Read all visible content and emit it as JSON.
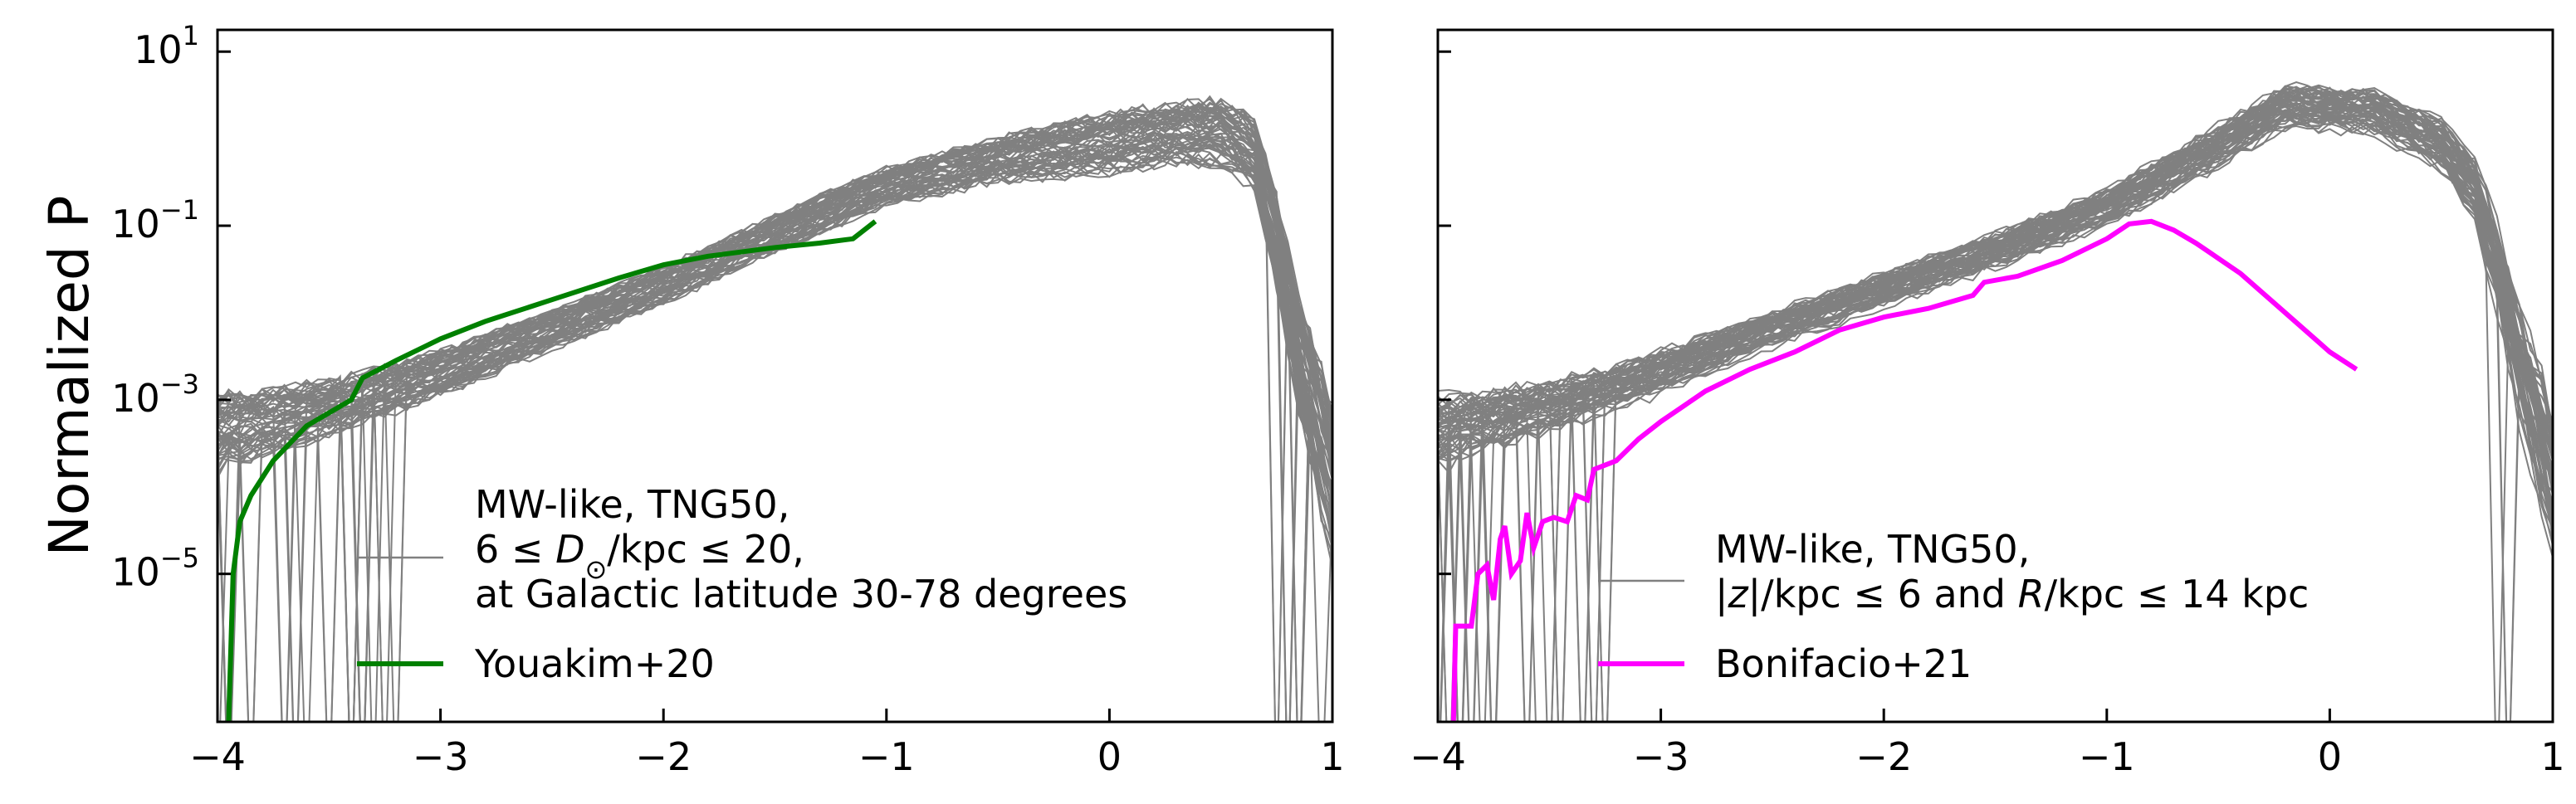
{
  "chart_data": [
    {
      "type": "line",
      "panel": "left",
      "ylabel": "Normalized P",
      "xlabel": "",
      "xlim": [
        -4,
        1
      ],
      "ylim_log10": [
        -6.7,
        1.25
      ],
      "yscale": "log",
      "xticks": [
        {
          "value": -4,
          "label": "−4"
        },
        {
          "value": -3,
          "label": "−3"
        },
        {
          "value": -2,
          "label": "−2"
        },
        {
          "value": -1,
          "label": "−1"
        },
        {
          "value": 0,
          "label": "0"
        },
        {
          "value": 1,
          "label": "1"
        }
      ],
      "yticks": [
        {
          "value": 1,
          "base": "10",
          "exp": "1"
        },
        {
          "value": -1,
          "base": "10",
          "exp": "−1"
        },
        {
          "value": -3,
          "base": "10",
          "exp": "−3"
        },
        {
          "value": -5,
          "base": "10",
          "exp": "−5"
        }
      ],
      "legend": {
        "placement": "lower-right",
        "sim_lines": [
          "MW-like, TNG50,",
          "6 ≤ D⊙/kpc  ≤ 20,",
          "at Galactic latitude 30-78 degrees"
        ],
        "obs_label": "Youakim+20"
      },
      "series": [
        {
          "name": "MW-like, TNG50, 6 ≤ D⊙/kpc ≤ 20, at Galactic latitude 30-78 degrees",
          "color": "#808080",
          "kind": "simulation-band",
          "members": 60,
          "envelope_x": [
            -4.0,
            -3.5,
            -3.0,
            -2.5,
            -2.0,
            -1.5,
            -1.0,
            -0.5,
            0.0,
            0.3,
            0.5,
            0.65,
            0.75,
            0.85,
            1.0
          ],
          "envelope_log10_mid": [
            -3.4,
            -3.1,
            -2.7,
            -2.2,
            -1.7,
            -1.1,
            -0.55,
            -0.25,
            -0.05,
            0.05,
            0.05,
            -0.2,
            -1.2,
            -2.5,
            -4.0
          ],
          "envelope_log10_halfwidth": [
            0.5,
            0.35,
            0.3,
            0.25,
            0.25,
            0.25,
            0.25,
            0.3,
            0.4,
            0.4,
            0.45,
            0.45,
            0.6,
            0.8,
            1.0
          ]
        },
        {
          "name": "Youakim+20",
          "color": "#008000",
          "kind": "observation",
          "x": [
            -3.95,
            -3.93,
            -3.9,
            -3.85,
            -3.8,
            -3.75,
            -3.6,
            -3.5,
            -3.4,
            -3.35,
            -3.2,
            -3.0,
            -2.8,
            -2.5,
            -2.2,
            -2.0,
            -1.8,
            -1.5,
            -1.3,
            -1.15,
            -1.05
          ],
          "log10y": [
            -6.7,
            -5.0,
            -4.4,
            -4.1,
            -3.9,
            -3.7,
            -3.3,
            -3.15,
            -3.0,
            -2.75,
            -2.55,
            -2.3,
            -2.1,
            -1.85,
            -1.6,
            -1.45,
            -1.35,
            -1.25,
            -1.2,
            -1.15,
            -0.95
          ]
        }
      ]
    },
    {
      "type": "line",
      "panel": "right",
      "xlabel": "",
      "xlim": [
        -4,
        1
      ],
      "ylim_log10": [
        -6.7,
        1.25
      ],
      "yscale": "log",
      "xticks": [
        {
          "value": -4,
          "label": "−4"
        },
        {
          "value": -3,
          "label": "−3"
        },
        {
          "value": -2,
          "label": "−2"
        },
        {
          "value": -1,
          "label": "−1"
        },
        {
          "value": 0,
          "label": "0"
        },
        {
          "value": 1,
          "label": "1"
        }
      ],
      "legend": {
        "placement": "lower-right",
        "sim_lines": [
          "MW-like, TNG50,",
          "|z|/kpc  ≤ 6 and R/kpc  ≤  14 kpc"
        ],
        "obs_label": "Bonifacio+21"
      },
      "series": [
        {
          "name": "MW-like, TNG50, |z|/kpc ≤ 6 and R/kpc ≤ 14 kpc",
          "color": "#808080",
          "kind": "simulation-band",
          "members": 60,
          "envelope_x": [
            -4.0,
            -3.5,
            -3.0,
            -2.5,
            -2.0,
            -1.5,
            -1.0,
            -0.5,
            -0.2,
            0.2,
            0.5,
            0.65,
            0.75,
            0.85,
            1.0
          ],
          "envelope_log10_mid": [
            -3.4,
            -3.1,
            -2.7,
            -2.2,
            -1.75,
            -1.3,
            -0.8,
            -0.1,
            0.35,
            0.3,
            -0.1,
            -0.6,
            -1.5,
            -2.6,
            -4.0
          ],
          "envelope_log10_halfwidth": [
            0.5,
            0.35,
            0.3,
            0.25,
            0.25,
            0.25,
            0.25,
            0.3,
            0.3,
            0.3,
            0.35,
            0.45,
            0.6,
            0.8,
            1.0
          ]
        },
        {
          "name": "Bonifacio+21",
          "color": "#ff00ff",
          "kind": "observation",
          "x": [
            -3.93,
            -3.92,
            -3.85,
            -3.82,
            -3.78,
            -3.75,
            -3.72,
            -3.7,
            -3.67,
            -3.63,
            -3.6,
            -3.57,
            -3.53,
            -3.48,
            -3.42,
            -3.38,
            -3.33,
            -3.3,
            -3.2,
            -3.1,
            -3.0,
            -2.8,
            -2.6,
            -2.4,
            -2.2,
            -2.0,
            -1.8,
            -1.6,
            -1.55,
            -1.4,
            -1.2,
            -1.0,
            -0.9,
            -0.8,
            -0.7,
            -0.6,
            -0.4,
            -0.2,
            0.0,
            0.12
          ],
          "log10y": [
            -6.7,
            -5.6,
            -5.6,
            -5.0,
            -4.9,
            -5.3,
            -4.6,
            -4.45,
            -5.0,
            -4.85,
            -4.3,
            -4.7,
            -4.4,
            -4.35,
            -4.4,
            -4.1,
            -4.15,
            -3.8,
            -3.7,
            -3.45,
            -3.25,
            -2.9,
            -2.65,
            -2.45,
            -2.2,
            -2.05,
            -1.95,
            -1.8,
            -1.65,
            -1.58,
            -1.4,
            -1.15,
            -0.98,
            -0.95,
            -1.05,
            -1.2,
            -1.55,
            -2.0,
            -2.45,
            -2.65
          ]
        }
      ]
    }
  ]
}
